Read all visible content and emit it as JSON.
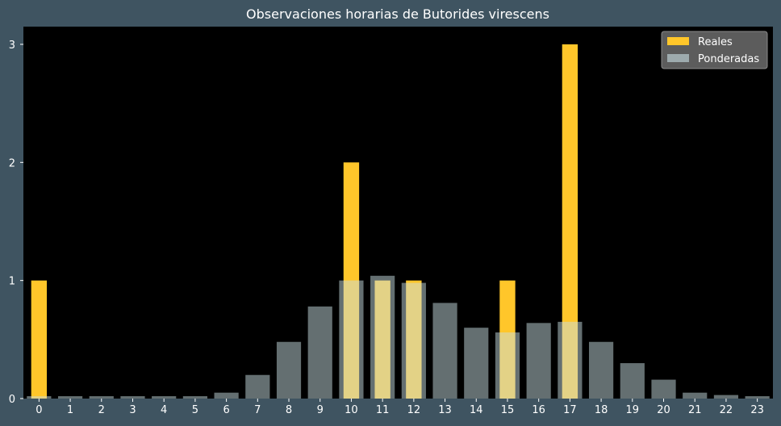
{
  "colors": {
    "background": "#3f5461",
    "plot_area": "#000000",
    "real_bar": "#ffc62a",
    "weighted_bar": "#c8dde2",
    "text": "#ffffff"
  },
  "chart_data": {
    "type": "bar",
    "title": "Observaciones horarias de Butorides virescens",
    "xlabel": "",
    "ylabel": "",
    "categories": [
      "0",
      "1",
      "2",
      "3",
      "4",
      "5",
      "6",
      "7",
      "8",
      "9",
      "10",
      "11",
      "12",
      "13",
      "14",
      "15",
      "16",
      "17",
      "18",
      "19",
      "20",
      "21",
      "22",
      "23"
    ],
    "ylim": [
      0,
      3.15
    ],
    "yticks": [
      0,
      1,
      2,
      3
    ],
    "grid": false,
    "legend_position": "top-right",
    "series": [
      {
        "name": "Reales",
        "color": "#ffc62a",
        "values": [
          1,
          0,
          0,
          0,
          0,
          0,
          0,
          0,
          0,
          0,
          2,
          1,
          1,
          0,
          0,
          1,
          0,
          3,
          0,
          0,
          0,
          0,
          0,
          0
        ]
      },
      {
        "name": "Ponderadas",
        "color": "#c8dde2",
        "opacity": 0.5,
        "values": [
          0.02,
          0.02,
          0.02,
          0.02,
          0.02,
          0.02,
          0.05,
          0.2,
          0.48,
          0.78,
          1.0,
          1.04,
          0.98,
          0.81,
          0.6,
          0.56,
          0.64,
          0.65,
          0.48,
          0.3,
          0.16,
          0.05,
          0.03,
          0.02
        ]
      }
    ]
  }
}
